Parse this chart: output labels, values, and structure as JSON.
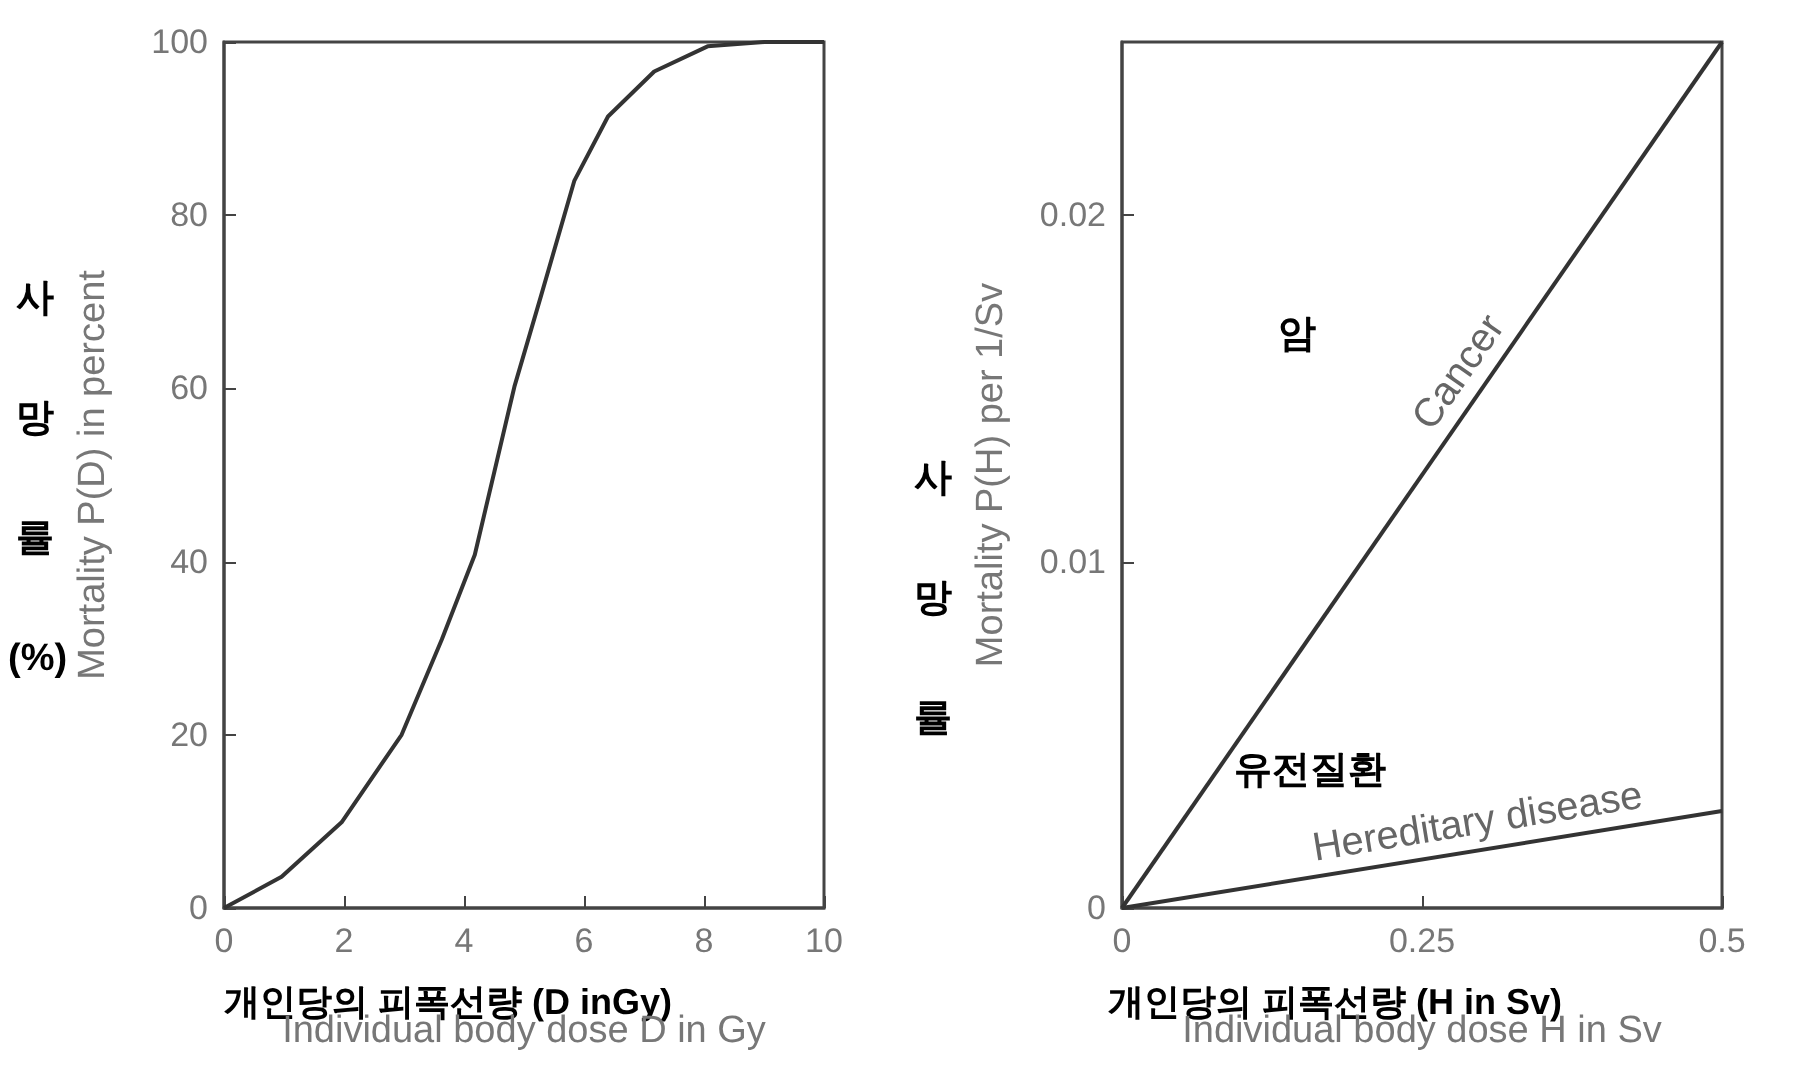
{
  "chart_data": [
    {
      "type": "line",
      "xlabel": "Individual body dose D in Gy",
      "ylabel": "Mortality P(D) in percent",
      "color": "#333333",
      "marker": "none",
      "x": [
        0,
        0.96,
        1.96,
        2.96,
        3.63,
        4.18,
        4.51,
        4.84,
        5.28,
        5.84,
        6.4,
        7.17,
        8.06,
        9,
        10
      ],
      "values": [
        0,
        3.6,
        9.9,
        20,
        31,
        40.8,
        50.5,
        60.2,
        70.6,
        84,
        91.4,
        96.6,
        99.5,
        100,
        100
      ],
      "xlim": [
        0,
        10
      ],
      "xticks": [
        0,
        2,
        4,
        6,
        8,
        10
      ],
      "ylim": [
        0,
        100
      ],
      "yticks": [
        0,
        20,
        40,
        60,
        80,
        100
      ],
      "annotations": [
        "사",
        "망",
        "률",
        "(%)",
        "개인당의 피폭선량 (D inGy)"
      ]
    },
    {
      "type": "line",
      "xlabel": "Individual body dose H in Sv",
      "ylabel": "Mortality P(H) per 1/Sv",
      "marker": "none",
      "x": [
        0,
        0.5
      ],
      "series": [
        {
          "name": "Cancer",
          "color": "#333333",
          "values": [
            0,
            0.025
          ]
        },
        {
          "name": "Hereditary disease",
          "color": "#333333",
          "values": [
            0,
            0.0028
          ]
        }
      ],
      "xlim": [
        0,
        0.5
      ],
      "xticks": [
        0,
        0.25,
        0.5
      ],
      "ylim": [
        0,
        0.025
      ],
      "yticks": [
        0,
        0.01,
        0.02
      ],
      "annotations": [
        "암",
        "유전질환",
        "사",
        "망",
        "률",
        "개인당의 피폭선량 (H in Sv)"
      ]
    }
  ]
}
